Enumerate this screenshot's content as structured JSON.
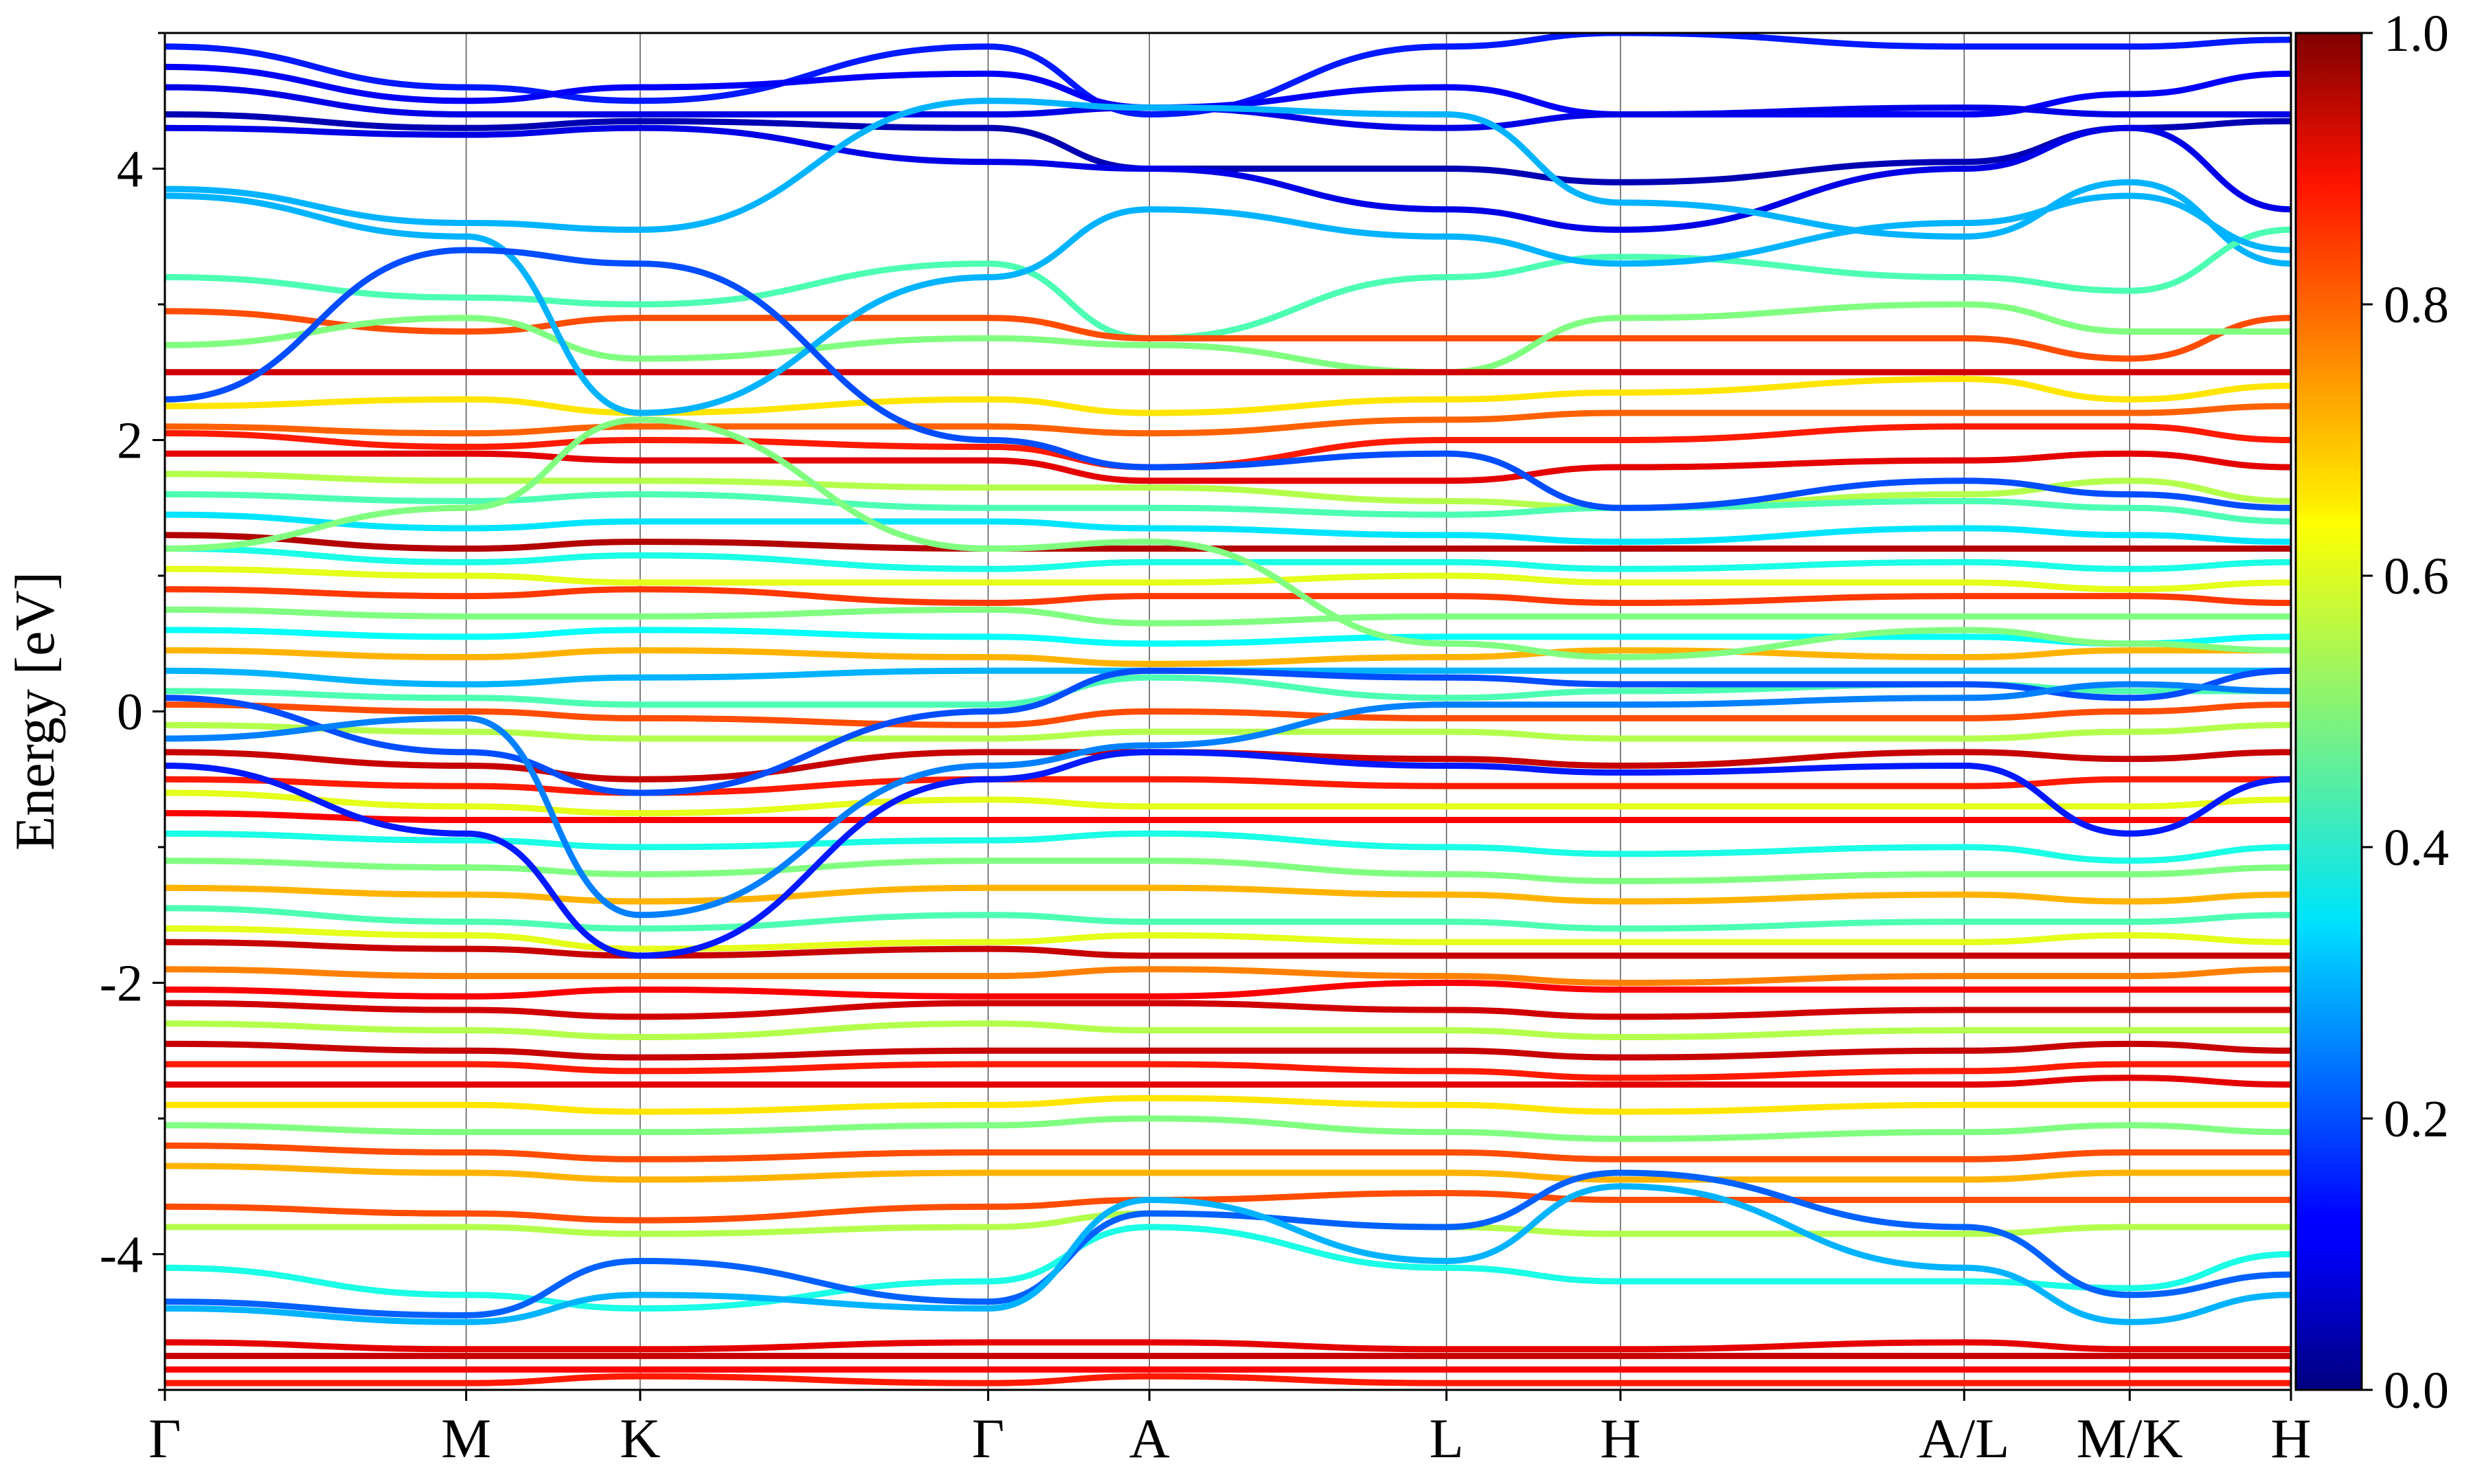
{
  "chart_data": {
    "type": "line",
    "ylabel": "Energy [eV]",
    "ylim": [
      -5,
      5
    ],
    "y_ticks": [
      -4,
      -2,
      0,
      2,
      4
    ],
    "y_tick_labels": [
      "-4",
      "-2",
      "0",
      "2",
      "4"
    ],
    "x_tick_labels": [
      "Γ",
      "M",
      "K",
      "Γ",
      "A",
      "L",
      "H",
      "A/L",
      "M/K",
      "H"
    ],
    "x": [
      0,
      0.71,
      1.12,
      1.94,
      2.32,
      3.02,
      3.43,
      4.24,
      4.63,
      5.01
    ],
    "xlim": [
      0,
      5.01
    ],
    "path_break_labels": [
      "A/L",
      "M/K"
    ],
    "colorbar": {
      "range": [
        0,
        1
      ],
      "ticks": [
        0.0,
        0.2,
        0.4,
        0.6,
        0.8,
        1.0
      ],
      "tick_labels": [
        "0.0",
        "0.2",
        "0.4",
        "0.6",
        "0.8",
        "1.0"
      ],
      "colormap": "jet"
    },
    "series": [
      {
        "e": [
          4.9,
          4.6,
          4.5,
          4.9,
          4.4,
          4.9,
          5.0,
          4.9,
          4.9,
          4.95
        ],
        "w": 0.15
      },
      {
        "e": [
          4.75,
          4.5,
          4.6,
          4.7,
          4.45,
          4.6,
          4.4,
          4.4,
          4.55,
          4.7
        ],
        "w": 0.12
      },
      {
        "e": [
          4.6,
          4.4,
          4.4,
          4.4,
          4.45,
          4.3,
          4.4,
          4.45,
          4.4,
          4.4
        ],
        "w": 0.1
      },
      {
        "e": [
          4.4,
          4.3,
          4.35,
          4.3,
          4.0,
          4.0,
          3.9,
          4.05,
          4.3,
          4.35
        ],
        "w": 0.05
      },
      {
        "e": [
          4.3,
          4.25,
          4.3,
          4.05,
          4.0,
          3.7,
          3.55,
          4.0,
          4.3,
          3.7
        ],
        "w": 0.1
      },
      {
        "e": [
          3.85,
          3.6,
          3.55,
          4.5,
          4.45,
          4.4,
          3.75,
          3.5,
          3.9,
          3.3
        ],
        "w": 0.3
      },
      {
        "e": [
          3.2,
          3.05,
          3.0,
          3.3,
          2.75,
          3.2,
          3.35,
          3.2,
          3.1,
          3.55
        ],
        "w": 0.45
      },
      {
        "e": [
          2.95,
          2.8,
          2.9,
          2.9,
          2.75,
          2.75,
          2.75,
          2.75,
          2.6,
          2.9
        ],
        "w": 0.8
      },
      {
        "e": [
          2.7,
          2.9,
          2.6,
          2.75,
          2.7,
          2.5,
          2.9,
          3.0,
          2.8,
          2.8
        ],
        "w": 0.5
      },
      {
        "e": [
          2.5,
          2.5,
          2.5,
          2.5,
          2.5,
          2.5,
          2.5,
          2.5,
          2.5,
          2.5
        ],
        "w": 0.92
      },
      {
        "e": [
          2.25,
          2.3,
          2.2,
          2.3,
          2.2,
          2.3,
          2.35,
          2.45,
          2.3,
          2.4
        ],
        "w": 0.65
      },
      {
        "e": [
          2.1,
          2.05,
          2.1,
          2.1,
          2.05,
          2.15,
          2.2,
          2.2,
          2.2,
          2.25
        ],
        "w": 0.78
      },
      {
        "e": [
          2.05,
          1.95,
          2.0,
          1.95,
          1.8,
          2.0,
          2.0,
          2.1,
          2.1,
          2.0
        ],
        "w": 0.85
      },
      {
        "e": [
          1.9,
          1.9,
          1.85,
          1.85,
          1.7,
          1.7,
          1.8,
          1.85,
          1.9,
          1.8
        ],
        "w": 0.9
      },
      {
        "e": [
          1.75,
          1.7,
          1.7,
          1.65,
          1.65,
          1.55,
          1.5,
          1.6,
          1.7,
          1.55
        ],
        "w": 0.55
      },
      {
        "e": [
          1.6,
          1.55,
          1.6,
          1.5,
          1.5,
          1.45,
          1.5,
          1.55,
          1.5,
          1.4
        ],
        "w": 0.45
      },
      {
        "e": [
          1.45,
          1.35,
          1.4,
          1.4,
          1.35,
          1.3,
          1.25,
          1.35,
          1.3,
          1.25
        ],
        "w": 0.35
      },
      {
        "e": [
          1.3,
          1.2,
          1.25,
          1.2,
          1.2,
          1.2,
          1.2,
          1.2,
          1.2,
          1.2
        ],
        "w": 0.95
      },
      {
        "e": [
          1.2,
          1.1,
          1.15,
          1.05,
          1.1,
          1.1,
          1.05,
          1.1,
          1.05,
          1.1
        ],
        "w": 0.4
      },
      {
        "e": [
          1.05,
          1.0,
          0.95,
          0.95,
          0.95,
          1.0,
          0.95,
          0.95,
          0.9,
          0.95
        ],
        "w": 0.6
      },
      {
        "e": [
          0.9,
          0.85,
          0.9,
          0.8,
          0.85,
          0.85,
          0.8,
          0.85,
          0.85,
          0.8
        ],
        "w": 0.82
      },
      {
        "e": [
          0.75,
          0.7,
          0.7,
          0.75,
          0.65,
          0.7,
          0.7,
          0.7,
          0.7,
          0.7
        ],
        "w": 0.5
      },
      {
        "e": [
          0.6,
          0.55,
          0.6,
          0.55,
          0.5,
          0.55,
          0.55,
          0.55,
          0.5,
          0.55
        ],
        "w": 0.38
      },
      {
        "e": [
          0.45,
          0.4,
          0.45,
          0.4,
          0.35,
          0.4,
          0.45,
          0.4,
          0.45,
          0.45
        ],
        "w": 0.7
      },
      {
        "e": [
          0.3,
          0.2,
          0.25,
          0.3,
          0.3,
          0.3,
          0.3,
          0.3,
          0.3,
          0.3
        ],
        "w": 0.3
      },
      {
        "e": [
          0.15,
          0.1,
          0.05,
          0.05,
          0.25,
          0.1,
          0.15,
          0.2,
          0.15,
          0.15
        ],
        "w": 0.45
      },
      {
        "e": [
          0.05,
          0.0,
          -0.05,
          -0.1,
          0.0,
          -0.05,
          -0.05,
          -0.05,
          0.0,
          0.05
        ],
        "w": 0.8
      },
      {
        "e": [
          -0.1,
          -0.15,
          -0.2,
          -0.2,
          -0.15,
          -0.15,
          -0.2,
          -0.2,
          -0.15,
          -0.1
        ],
        "w": 0.55
      },
      {
        "e": [
          -0.3,
          -0.4,
          -0.5,
          -0.3,
          -0.3,
          -0.35,
          -0.4,
          -0.3,
          -0.35,
          -0.3
        ],
        "w": 0.93
      },
      {
        "e": [
          -0.5,
          -0.55,
          -0.6,
          -0.5,
          -0.5,
          -0.55,
          -0.55,
          -0.55,
          -0.5,
          -0.5
        ],
        "w": 0.85
      },
      {
        "e": [
          -0.6,
          -0.7,
          -0.75,
          -0.65,
          -0.7,
          -0.7,
          -0.7,
          -0.7,
          -0.7,
          -0.65
        ],
        "w": 0.6
      },
      {
        "e": [
          -0.75,
          -0.8,
          -0.8,
          -0.8,
          -0.8,
          -0.8,
          -0.8,
          -0.8,
          -0.8,
          -0.8
        ],
        "w": 0.88
      },
      {
        "e": [
          -0.9,
          -0.95,
          -1.0,
          -0.95,
          -0.9,
          -1.0,
          -1.05,
          -1.0,
          -1.1,
          -1.0
        ],
        "w": 0.4
      },
      {
        "e": [
          -1.1,
          -1.15,
          -1.2,
          -1.1,
          -1.1,
          -1.2,
          -1.25,
          -1.2,
          -1.2,
          -1.15
        ],
        "w": 0.5
      },
      {
        "e": [
          -1.3,
          -1.35,
          -1.4,
          -1.3,
          -1.3,
          -1.35,
          -1.4,
          -1.35,
          -1.4,
          -1.35
        ],
        "w": 0.7
      },
      {
        "e": [
          -1.45,
          -1.55,
          -1.6,
          -1.5,
          -1.55,
          -1.55,
          -1.6,
          -1.55,
          -1.55,
          -1.5
        ],
        "w": 0.45
      },
      {
        "e": [
          -1.6,
          -1.65,
          -1.75,
          -1.7,
          -1.65,
          -1.7,
          -1.7,
          -1.7,
          -1.65,
          -1.7
        ],
        "w": 0.6
      },
      {
        "e": [
          -1.7,
          -1.75,
          -1.8,
          -1.75,
          -1.8,
          -1.8,
          -1.8,
          -1.8,
          -1.8,
          -1.8
        ],
        "w": 0.93
      },
      {
        "e": [
          -1.9,
          -1.95,
          -1.95,
          -1.95,
          -1.9,
          -1.95,
          -2.0,
          -1.95,
          -1.95,
          -1.9
        ],
        "w": 0.75
      },
      {
        "e": [
          -2.05,
          -2.1,
          -2.05,
          -2.1,
          -2.1,
          -2.0,
          -2.05,
          -2.05,
          -2.05,
          -2.05
        ],
        "w": 0.88
      },
      {
        "e": [
          -2.15,
          -2.2,
          -2.25,
          -2.15,
          -2.15,
          -2.2,
          -2.25,
          -2.2,
          -2.2,
          -2.2
        ],
        "w": 0.92
      },
      {
        "e": [
          -2.3,
          -2.35,
          -2.4,
          -2.3,
          -2.35,
          -2.35,
          -2.4,
          -2.35,
          -2.35,
          -2.35
        ],
        "w": 0.55
      },
      {
        "e": [
          -2.45,
          -2.5,
          -2.55,
          -2.5,
          -2.5,
          -2.5,
          -2.55,
          -2.5,
          -2.45,
          -2.5
        ],
        "w": 0.93
      },
      {
        "e": [
          -2.6,
          -2.6,
          -2.65,
          -2.6,
          -2.6,
          -2.65,
          -2.7,
          -2.65,
          -2.6,
          -2.6
        ],
        "w": 0.85
      },
      {
        "e": [
          -2.75,
          -2.75,
          -2.75,
          -2.75,
          -2.75,
          -2.75,
          -2.75,
          -2.75,
          -2.7,
          -2.75
        ],
        "w": 0.9
      },
      {
        "e": [
          -2.9,
          -2.9,
          -2.95,
          -2.9,
          -2.85,
          -2.9,
          -2.95,
          -2.9,
          -2.9,
          -2.9
        ],
        "w": 0.65
      },
      {
        "e": [
          -3.05,
          -3.1,
          -3.1,
          -3.05,
          -3.0,
          -3.1,
          -3.15,
          -3.1,
          -3.05,
          -3.1
        ],
        "w": 0.5
      },
      {
        "e": [
          -3.2,
          -3.25,
          -3.3,
          -3.25,
          -3.25,
          -3.25,
          -3.3,
          -3.3,
          -3.25,
          -3.25
        ],
        "w": 0.8
      },
      {
        "e": [
          -3.35,
          -3.4,
          -3.45,
          -3.4,
          -3.4,
          -3.4,
          -3.45,
          -3.45,
          -3.4,
          -3.4
        ],
        "w": 0.7
      },
      {
        "e": [
          -3.65,
          -3.7,
          -3.75,
          -3.65,
          -3.6,
          -3.55,
          -3.6,
          -3.6,
          -3.6,
          -3.6
        ],
        "w": 0.8
      },
      {
        "e": [
          -3.8,
          -3.8,
          -3.85,
          -3.8,
          -3.7,
          -3.8,
          -3.85,
          -3.85,
          -3.8,
          -3.8
        ],
        "w": 0.55
      },
      {
        "e": [
          -4.1,
          -4.3,
          -4.4,
          -4.2,
          -3.8,
          -4.1,
          -4.2,
          -4.2,
          -4.25,
          -4.0
        ],
        "w": 0.4
      },
      {
        "e": [
          -4.35,
          -4.45,
          -4.05,
          -4.35,
          -3.7,
          -3.8,
          -3.4,
          -3.8,
          -4.3,
          -4.15
        ],
        "w": 0.22
      },
      {
        "e": [
          -4.4,
          -4.5,
          -4.3,
          -4.4,
          -3.6,
          -4.05,
          -3.5,
          -4.1,
          -4.5,
          -4.3
        ],
        "w": 0.3
      },
      {
        "e": [
          -4.65,
          -4.7,
          -4.7,
          -4.65,
          -4.65,
          -4.7,
          -4.7,
          -4.65,
          -4.7,
          -4.7
        ],
        "w": 0.9
      },
      {
        "e": [
          -4.75,
          -4.75,
          -4.75,
          -4.75,
          -4.75,
          -4.75,
          -4.75,
          -4.75,
          -4.75,
          -4.75
        ],
        "w": 0.93
      },
      {
        "e": [
          -4.85,
          -4.85,
          -4.85,
          -4.85,
          -4.85,
          -4.85,
          -4.85,
          -4.85,
          -4.85,
          -4.85
        ],
        "w": 0.88
      },
      {
        "e": [
          -4.95,
          -4.95,
          -4.9,
          -4.95,
          -4.9,
          -4.95,
          -4.95,
          -4.95,
          -4.95,
          -4.95
        ],
        "w": 0.85
      },
      {
        "e": [
          0.1,
          -0.3,
          -0.6,
          0.0,
          0.3,
          0.25,
          0.2,
          0.2,
          0.1,
          0.3
        ],
        "w": 0.2
      },
      {
        "e": [
          -0.2,
          -0.05,
          -1.5,
          -0.4,
          -0.25,
          0.05,
          0.05,
          0.1,
          0.2,
          0.15
        ],
        "w": 0.25
      },
      {
        "e": [
          -0.4,
          -0.9,
          -1.8,
          -0.5,
          -0.3,
          -0.4,
          -0.45,
          -0.4,
          -0.9,
          -0.5
        ],
        "w": 0.15
      },
      {
        "e": [
          3.8,
          3.5,
          2.2,
          3.2,
          3.7,
          3.5,
          3.3,
          3.6,
          3.8,
          3.4
        ],
        "w": 0.3
      },
      {
        "e": [
          2.3,
          3.4,
          3.3,
          2.0,
          1.8,
          1.9,
          1.5,
          1.7,
          1.6,
          1.5
        ],
        "w": 0.2
      },
      {
        "e": [
          1.2,
          1.5,
          2.15,
          1.2,
          1.25,
          0.5,
          0.4,
          0.6,
          0.5,
          0.45
        ],
        "w": 0.5
      }
    ]
  }
}
